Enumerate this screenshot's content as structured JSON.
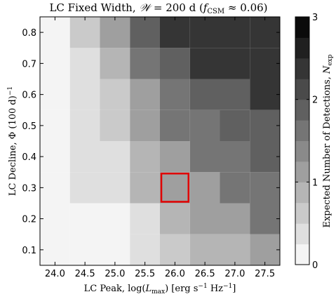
{
  "chart_data": {
    "type": "heatmap",
    "title": "LC Fixed Width, 𝒲 = 200 d (f_CSM ≈ 0.06)",
    "xlabel": "LC Peak, log(L_max) [erg s⁻¹ Hz⁻¹]",
    "ylabel": "LC Decline, Φ (100 d)⁻¹",
    "colorbar_label": "Expected Number of Detections, N_exp",
    "x_ticks": [
      "24.0",
      "24.5",
      "25.0",
      "25.5",
      "26.0",
      "26.5",
      "27.0",
      "27.5"
    ],
    "y_ticks": [
      "0.1",
      "0.2",
      "0.3",
      "0.4",
      "0.5",
      "0.6",
      "0.7",
      "0.8"
    ],
    "colorbar_ticks": [
      "0",
      "1",
      "2",
      "3"
    ],
    "x_centers": [
      24.0,
      24.25,
      24.5,
      24.75,
      25.0,
      25.25,
      25.5,
      25.75,
      26.0,
      26.25,
      26.5,
      26.75,
      27.0,
      27.25,
      27.5
    ],
    "xlim": [
      23.75,
      27.75
    ],
    "y_centers": [
      0.1,
      0.2,
      0.3,
      0.4,
      0.5,
      0.6,
      0.7,
      0.8
    ],
    "ylim": [
      0.05,
      0.85
    ],
    "cell_width": 0.5,
    "cell_height": 0.1,
    "rows": [
      {
        "y": 0.1,
        "values": [
          {
            "x": 24.0,
            "v": 0.05
          },
          {
            "x": 24.5,
            "v": 0.08
          },
          {
            "x": 25.0,
            "v": 0.15
          },
          {
            "x": 25.5,
            "v": 0.35
          },
          {
            "x": 26.0,
            "v": 0.55
          },
          {
            "x": 26.5,
            "v": 0.8
          },
          {
            "x": 27.0,
            "v": 0.9
          },
          {
            "x": 27.5,
            "v": 1.1
          }
        ]
      },
      {
        "y": 0.2,
        "values": [
          {
            "x": 24.0,
            "v": 0.05
          },
          {
            "x": 24.5,
            "v": 0.1
          },
          {
            "x": 25.0,
            "v": 0.2
          },
          {
            "x": 25.5,
            "v": 0.35
          },
          {
            "x": 26.0,
            "v": 0.9
          },
          {
            "x": 26.5,
            "v": 1.05
          },
          {
            "x": 27.0,
            "v": 1.1
          },
          {
            "x": 27.5,
            "v": 1.5
          }
        ]
      },
      {
        "y": 0.3,
        "values": [
          {
            "x": 24.0,
            "v": 0.05
          },
          {
            "x": 24.5,
            "v": 0.3
          },
          {
            "x": 25.0,
            "v": 0.4
          },
          {
            "x": 25.5,
            "v": 0.9
          },
          {
            "x": 26.0,
            "v": 1.05
          },
          {
            "x": 26.5,
            "v": 1.05
          },
          {
            "x": 27.0,
            "v": 1.5
          },
          {
            "x": 27.5,
            "v": 1.7
          }
        ]
      },
      {
        "y": 0.4,
        "values": [
          {
            "x": 24.0,
            "v": 0.05
          },
          {
            "x": 24.5,
            "v": 0.3
          },
          {
            "x": 25.0,
            "v": 0.4
          },
          {
            "x": 25.5,
            "v": 0.95
          },
          {
            "x": 26.0,
            "v": 1.1
          },
          {
            "x": 26.5,
            "v": 1.5
          },
          {
            "x": 27.0,
            "v": 1.7
          },
          {
            "x": 27.5,
            "v": 1.8
          }
        ]
      },
      {
        "y": 0.5,
        "values": [
          {
            "x": 24.0,
            "v": 0.05
          },
          {
            "x": 24.5,
            "v": 0.3
          },
          {
            "x": 25.0,
            "v": 0.5
          },
          {
            "x": 25.5,
            "v": 1.1
          },
          {
            "x": 26.0,
            "v": 1.5
          },
          {
            "x": 26.5,
            "v": 1.6
          },
          {
            "x": 27.0,
            "v": 1.9
          },
          {
            "x": 27.5,
            "v": 1.9
          }
        ]
      },
      {
        "y": 0.6,
        "values": [
          {
            "x": 24.0,
            "v": 0.05
          },
          {
            "x": 24.5,
            "v": 0.3
          },
          {
            "x": 25.0,
            "v": 0.7
          },
          {
            "x": 25.5,
            "v": 1.1
          },
          {
            "x": 26.0,
            "v": 1.7
          },
          {
            "x": 26.5,
            "v": 1.95
          },
          {
            "x": 27.0,
            "v": 1.95
          },
          {
            "x": 27.5,
            "v": 2.3
          }
        ]
      },
      {
        "y": 0.7,
        "values": [
          {
            "x": 24.0,
            "v": 0.05
          },
          {
            "x": 24.5,
            "v": 0.3
          },
          {
            "x": 25.0,
            "v": 0.8
          },
          {
            "x": 25.5,
            "v": 1.5
          },
          {
            "x": 26.0,
            "v": 1.95
          },
          {
            "x": 26.5,
            "v": 2.3
          },
          {
            "x": 27.0,
            "v": 2.3
          },
          {
            "x": 27.5,
            "v": 2.3
          }
        ]
      },
      {
        "y": 0.8,
        "values": [
          {
            "x": 24.0,
            "v": 0.2
          },
          {
            "x": 24.5,
            "v": 0.5
          },
          {
            "x": 25.0,
            "v": 1.2
          },
          {
            "x": 25.5,
            "v": 1.8
          },
          {
            "x": 26.0,
            "v": 2.3
          },
          {
            "x": 26.5,
            "v": 2.3
          },
          {
            "x": 27.0,
            "v": 2.3
          },
          {
            "x": 27.5,
            "v": 2.3
          }
        ]
      }
    ],
    "highlight": {
      "x": 26.0,
      "y": 0.3,
      "color": "#e00000"
    },
    "colormap": "Greys",
    "colorbar_levels": 12,
    "vmin": 0,
    "vmax": 3,
    "grid": false,
    "legend": "none"
  }
}
